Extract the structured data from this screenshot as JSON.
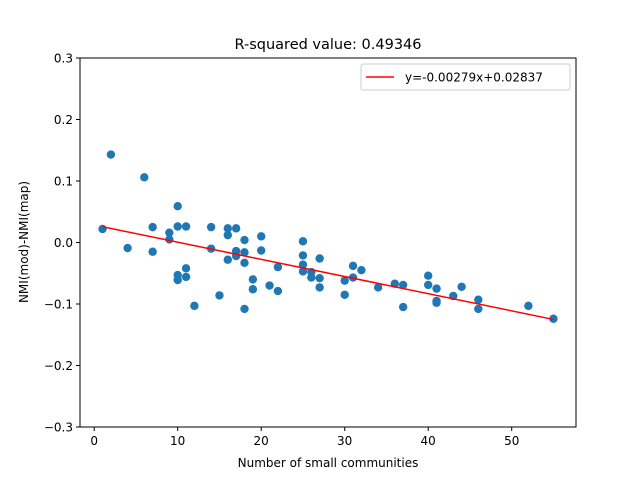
{
  "chart_data": {
    "type": "scatter",
    "title": "R-squared value: 0.49346",
    "xlabel": "Number of small communities",
    "ylabel": "NMI(mod)-NMI(map)",
    "xlim": [
      -1.7,
      57.7
    ],
    "ylim": [
      -0.3,
      0.3
    ],
    "xticks": [
      0,
      10,
      20,
      30,
      40,
      50
    ],
    "xtick_labels": [
      "0",
      "10",
      "20",
      "30",
      "40",
      "50"
    ],
    "yticks": [
      -0.3,
      -0.2,
      -0.1,
      0.0,
      0.1,
      0.2,
      0.3
    ],
    "ytick_labels": [
      "−0.3",
      "−0.2",
      "−0.1",
      "0.0",
      "0.1",
      "0.2",
      "0.3"
    ],
    "grid": false,
    "legend_position": "top-right",
    "fit_line": {
      "label": "y=-0.00279x+0.02837",
      "slope": -0.00279,
      "intercept": 0.02837,
      "x_range": [
        1,
        55
      ],
      "color": "#ff0000"
    },
    "points_color": "#1f77b4",
    "points": [
      [
        1,
        0.022
      ],
      [
        2,
        0.143
      ],
      [
        4,
        -0.009
      ],
      [
        6,
        0.106
      ],
      [
        7,
        0.025
      ],
      [
        7,
        -0.015
      ],
      [
        9,
        0.016
      ],
      [
        9,
        0.005
      ],
      [
        10,
        0.059
      ],
      [
        10,
        0.026
      ],
      [
        10,
        -0.053
      ],
      [
        10,
        -0.061
      ],
      [
        11,
        0.026
      ],
      [
        11,
        -0.042
      ],
      [
        11,
        -0.056
      ],
      [
        12,
        -0.103
      ],
      [
        14,
        0.025
      ],
      [
        14,
        -0.01
      ],
      [
        15,
        -0.086
      ],
      [
        16,
        0.023
      ],
      [
        16,
        0.012
      ],
      [
        16,
        -0.028
      ],
      [
        17,
        0.023
      ],
      [
        17,
        -0.014
      ],
      [
        17,
        -0.022
      ],
      [
        18,
        0.004
      ],
      [
        18,
        -0.016
      ],
      [
        18,
        -0.033
      ],
      [
        18,
        -0.108
      ],
      [
        19,
        -0.06
      ],
      [
        19,
        -0.076
      ],
      [
        20,
        0.01
      ],
      [
        20,
        -0.013
      ],
      [
        21,
        -0.07
      ],
      [
        22,
        -0.04
      ],
      [
        22,
        -0.079
      ],
      [
        25,
        0.002
      ],
      [
        25,
        -0.021
      ],
      [
        25,
        -0.036
      ],
      [
        25,
        -0.047
      ],
      [
        26,
        -0.048
      ],
      [
        26,
        -0.057
      ],
      [
        27,
        -0.026
      ],
      [
        27,
        -0.058
      ],
      [
        27,
        -0.073
      ],
      [
        30,
        -0.062
      ],
      [
        30,
        -0.085
      ],
      [
        31,
        -0.038
      ],
      [
        31,
        -0.057
      ],
      [
        32,
        -0.045
      ],
      [
        34,
        -0.073
      ],
      [
        36,
        -0.067
      ],
      [
        37,
        -0.069
      ],
      [
        37,
        -0.105
      ],
      [
        40,
        -0.054
      ],
      [
        40,
        -0.069
      ],
      [
        41,
        -0.075
      ],
      [
        41,
        -0.095
      ],
      [
        41,
        -0.098
      ],
      [
        43,
        -0.087
      ],
      [
        44,
        -0.072
      ],
      [
        46,
        -0.093
      ],
      [
        46,
        -0.108
      ],
      [
        52,
        -0.103
      ],
      [
        55,
        -0.124
      ]
    ]
  }
}
